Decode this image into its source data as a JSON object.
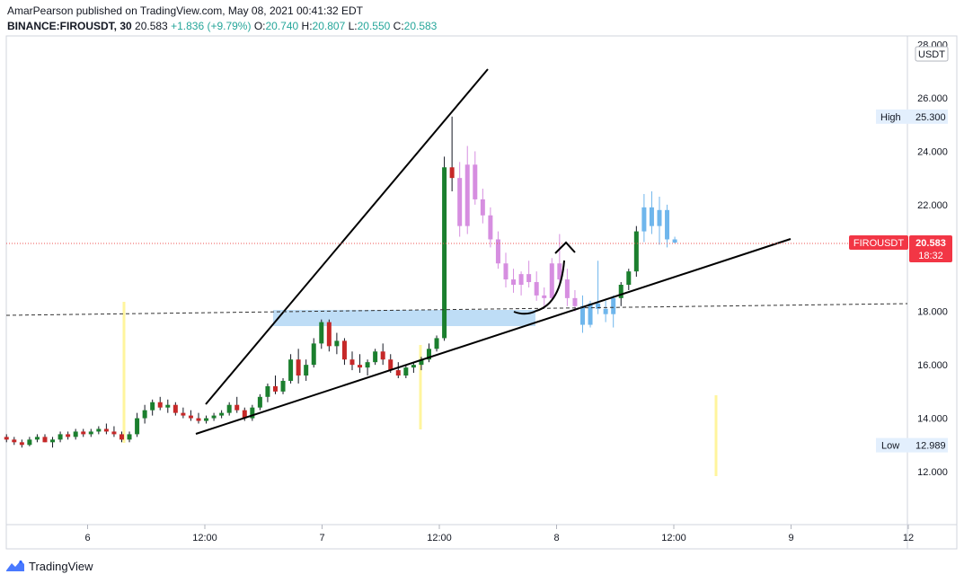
{
  "header": {
    "publisher_line": "AmarPearson published on TradingView.com, May 08, 2021 00:41:32 EDT",
    "symbol": "BINANCE:FIROUSDT, 30",
    "last": "20.583",
    "change": "+1.836 (+9.79%)",
    "o_label": "O:",
    "o_value": "20.740",
    "h_label": "H:",
    "h_value": "20.807",
    "l_label": "L:",
    "l_value": "20.550",
    "c_label": "C:",
    "c_value": "20.583"
  },
  "footer": {
    "brand": "TradingView"
  },
  "colors": {
    "up": "#26a69a",
    "down": "#ef5350",
    "dark_green": "#1b7f2e",
    "dark_red": "#c62828",
    "pink": "#d68ee0",
    "blue": "#6fb6ec",
    "zone": "#b3d7f5",
    "yellow": "#fff59d",
    "price_label": "#f23645",
    "axis_text": "#131722"
  },
  "chart_data": {
    "type": "candlestick",
    "symbol": "FIROUSDT",
    "currency": "USDT",
    "ylim": [
      10.5,
      28.5
    ],
    "y_ticks": [
      "12.000",
      "14.000",
      "16.000",
      "18.000",
      "20.000",
      "22.000",
      "24.000",
      "26.000",
      "28.000"
    ],
    "x_ticks": [
      {
        "label": "6",
        "t": 2.1
      },
      {
        "label": "12:00",
        "t": 14.1
      },
      {
        "label": "7",
        "t": 26.1
      },
      {
        "label": "12:00",
        "t": 38.1
      },
      {
        "label": "8",
        "t": 50.1
      },
      {
        "label": "12:00",
        "t": 62.1
      },
      {
        "label": "9",
        "t": 74.1
      },
      {
        "label": "12",
        "t": 86.1
      }
    ],
    "t_range": [
      -6.2,
      87
    ]
  },
  "price_labels": {
    "high_label": "High",
    "high_value": "25.300",
    "low_label": "Low",
    "low_value": "12.989",
    "last_symbol": "FIROUSDT",
    "last_value": "20.583",
    "countdown": "18:32",
    "last_price": 20.583,
    "high": 25.3,
    "low": 12.989
  }
}
